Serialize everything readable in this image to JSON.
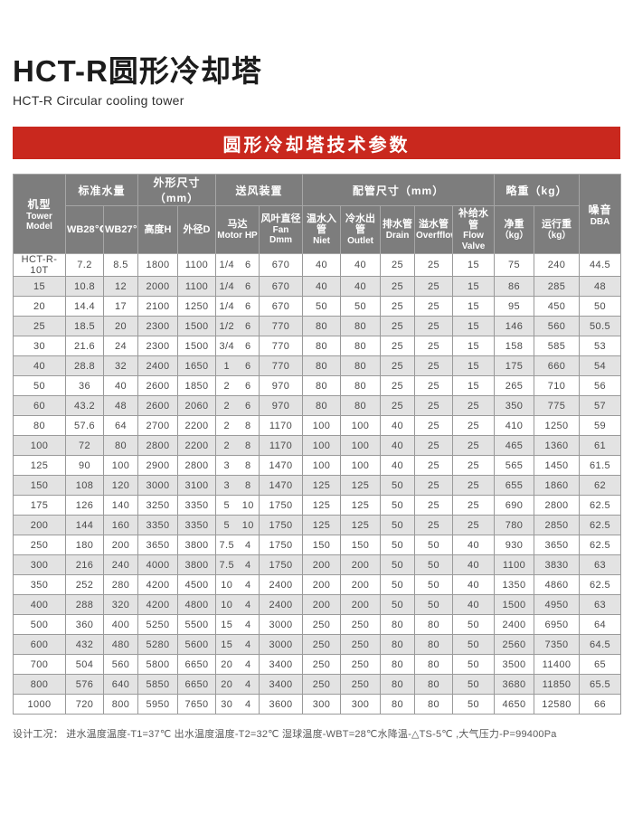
{
  "page": {
    "title_cn": "HCT-R圆形冷却塔",
    "title_en": "HCT-R Circular cooling tower",
    "banner": "圆形冷却塔技术参数",
    "footer": "设计工况： 进水温度温度-T1=37℃  出水温度温度-T2=32℃  湿球温度-WBT=28℃水降温-△TS-5℃ ,大气压力-P=99400Pa"
  },
  "colors": {
    "banner_red": "#c9281e",
    "header_gray": "#7d7d7d",
    "row_alt_gray": "#e3e3e3",
    "border_gray": "#9a9a9a"
  },
  "table": {
    "header": {
      "model": {
        "l1": "机型",
        "l2": "Tower",
        "l3": "Model"
      },
      "groups": [
        {
          "label": "标准水量"
        },
        {
          "label": "外形尺寸（mm）"
        },
        {
          "label": "送风装置"
        },
        {
          "label": "配管尺寸（mm）"
        },
        {
          "label": "略重（kg）"
        }
      ],
      "noise": {
        "l1": "噪音",
        "l2": "DBA"
      },
      "subs": [
        {
          "cn": "WB28℃",
          "en": ""
        },
        {
          "cn": "WB27℃",
          "en": ""
        },
        {
          "cn": "高度H",
          "en": ""
        },
        {
          "cn": "外径D",
          "en": ""
        },
        {
          "cn": "马达",
          "en": "Motor HP"
        },
        {
          "cn": "风叶直径",
          "en": "Fan Dmm"
        },
        {
          "cn": "温水入管",
          "en": "Niet"
        },
        {
          "cn": "冷水出管",
          "en": "Outlet"
        },
        {
          "cn": "排水管",
          "en": "Drain"
        },
        {
          "cn": "溢水管",
          "en": "Overfflow"
        },
        {
          "cn": "补给水管",
          "en": "Flow Valve"
        },
        {
          "cn": "净重",
          "en": "（kg）"
        },
        {
          "cn": "运行重",
          "en": "（kg）"
        }
      ]
    },
    "rows": [
      [
        "HCT-R-10T",
        "7.2",
        "8.5",
        "1800",
        "1100",
        "1/4",
        "6",
        "670",
        "40",
        "40",
        "25",
        "25",
        "15",
        "75",
        "240",
        "44.5"
      ],
      [
        "15",
        "10.8",
        "12",
        "2000",
        "1100",
        "1/4",
        "6",
        "670",
        "40",
        "40",
        "25",
        "25",
        "15",
        "86",
        "285",
        "48"
      ],
      [
        "20",
        "14.4",
        "17",
        "2100",
        "1250",
        "1/4",
        "6",
        "670",
        "50",
        "50",
        "25",
        "25",
        "15",
        "95",
        "450",
        "50"
      ],
      [
        "25",
        "18.5",
        "20",
        "2300",
        "1500",
        "1/2",
        "6",
        "770",
        "80",
        "80",
        "25",
        "25",
        "15",
        "146",
        "560",
        "50.5"
      ],
      [
        "30",
        "21.6",
        "24",
        "2300",
        "1500",
        "3/4",
        "6",
        "770",
        "80",
        "80",
        "25",
        "25",
        "15",
        "158",
        "585",
        "53"
      ],
      [
        "40",
        "28.8",
        "32",
        "2400",
        "1650",
        "1",
        "6",
        "770",
        "80",
        "80",
        "25",
        "25",
        "15",
        "175",
        "660",
        "54"
      ],
      [
        "50",
        "36",
        "40",
        "2600",
        "1850",
        "2",
        "6",
        "970",
        "80",
        "80",
        "25",
        "25",
        "15",
        "265",
        "710",
        "56"
      ],
      [
        "60",
        "43.2",
        "48",
        "2600",
        "2060",
        "2",
        "6",
        "970",
        "80",
        "80",
        "25",
        "25",
        "25",
        "350",
        "775",
        "57"
      ],
      [
        "80",
        "57.6",
        "64",
        "2700",
        "2200",
        "2",
        "8",
        "1170",
        "100",
        "100",
        "40",
        "25",
        "25",
        "410",
        "1250",
        "59"
      ],
      [
        "100",
        "72",
        "80",
        "2800",
        "2200",
        "2",
        "8",
        "1170",
        "100",
        "100",
        "40",
        "25",
        "25",
        "465",
        "1360",
        "61"
      ],
      [
        "125",
        "90",
        "100",
        "2900",
        "2800",
        "3",
        "8",
        "1470",
        "100",
        "100",
        "40",
        "25",
        "25",
        "565",
        "1450",
        "61.5"
      ],
      [
        "150",
        "108",
        "120",
        "3000",
        "3100",
        "3",
        "8",
        "1470",
        "125",
        "125",
        "50",
        "25",
        "25",
        "655",
        "1860",
        "62"
      ],
      [
        "175",
        "126",
        "140",
        "3250",
        "3350",
        "5",
        "10",
        "1750",
        "125",
        "125",
        "50",
        "25",
        "25",
        "690",
        "2800",
        "62.5"
      ],
      [
        "200",
        "144",
        "160",
        "3350",
        "3350",
        "5",
        "10",
        "1750",
        "125",
        "125",
        "50",
        "25",
        "25",
        "780",
        "2850",
        "62.5"
      ],
      [
        "250",
        "180",
        "200",
        "3650",
        "3800",
        "7.5",
        "4",
        "1750",
        "150",
        "150",
        "50",
        "50",
        "40",
        "930",
        "3650",
        "62.5"
      ],
      [
        "300",
        "216",
        "240",
        "4000",
        "3800",
        "7.5",
        "4",
        "1750",
        "200",
        "200",
        "50",
        "50",
        "40",
        "1100",
        "3830",
        "63"
      ],
      [
        "350",
        "252",
        "280",
        "4200",
        "4500",
        "10",
        "4",
        "2400",
        "200",
        "200",
        "50",
        "50",
        "40",
        "1350",
        "4860",
        "62.5"
      ],
      [
        "400",
        "288",
        "320",
        "4200",
        "4800",
        "10",
        "4",
        "2400",
        "200",
        "200",
        "50",
        "50",
        "40",
        "1500",
        "4950",
        "63"
      ],
      [
        "500",
        "360",
        "400",
        "5250",
        "5500",
        "15",
        "4",
        "3000",
        "250",
        "250",
        "80",
        "80",
        "50",
        "2400",
        "6950",
        "64"
      ],
      [
        "600",
        "432",
        "480",
        "5280",
        "5600",
        "15",
        "4",
        "3000",
        "250",
        "250",
        "80",
        "80",
        "50",
        "2560",
        "7350",
        "64.5"
      ],
      [
        "700",
        "504",
        "560",
        "5800",
        "6650",
        "20",
        "4",
        "3400",
        "250",
        "250",
        "80",
        "80",
        "50",
        "3500",
        "11400",
        "65"
      ],
      [
        "800",
        "576",
        "640",
        "5850",
        "6650",
        "20",
        "4",
        "3400",
        "250",
        "250",
        "80",
        "80",
        "50",
        "3680",
        "11850",
        "65.5"
      ],
      [
        "1000",
        "720",
        "800",
        "5950",
        "7650",
        "30",
        "4",
        "3600",
        "300",
        "300",
        "80",
        "80",
        "50",
        "4650",
        "12580",
        "66"
      ]
    ]
  }
}
